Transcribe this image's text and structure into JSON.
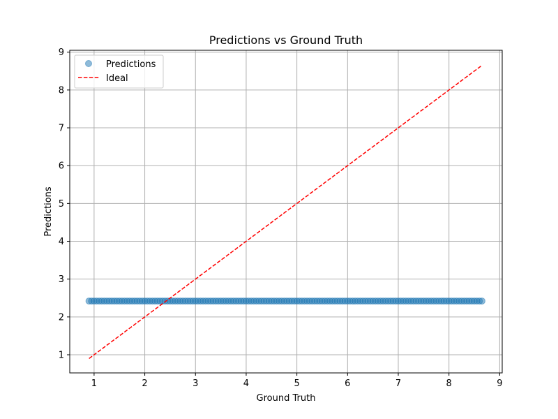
{
  "chart_data": {
    "type": "scatter",
    "title": "Predictions vs Ground Truth",
    "xlabel": "Ground Truth",
    "ylabel": "Predictions",
    "xlim": [
      0.52,
      9.05
    ],
    "ylim": [
      0.52,
      9.05
    ],
    "xticks": [
      1,
      2,
      3,
      4,
      5,
      6,
      7,
      8,
      9
    ],
    "yticks": [
      1,
      2,
      3,
      4,
      5,
      6,
      7,
      8,
      9
    ],
    "grid": true,
    "legend": {
      "position": "top-left"
    },
    "series": [
      {
        "name": "Predictions",
        "kind": "scatter",
        "color": "#1f77b4",
        "alpha": 0.5,
        "constant_y": 2.42,
        "x_range": [
          0.9,
          8.65
        ],
        "x": [
          0.9,
          0.95,
          1.0,
          1.05,
          1.1,
          1.15,
          1.2,
          1.25,
          1.3,
          1.35,
          1.4,
          1.45,
          1.5,
          1.55,
          1.6,
          1.65,
          1.7,
          1.75,
          1.8,
          1.85,
          1.9,
          1.95,
          2.0,
          2.05,
          2.1,
          2.15,
          2.2,
          2.25,
          2.3,
          2.35,
          2.4,
          2.45,
          2.5,
          2.55,
          2.6,
          2.65,
          2.7,
          2.75,
          2.8,
          2.85,
          2.9,
          2.95,
          3.0,
          3.05,
          3.1,
          3.15,
          3.2,
          3.25,
          3.3,
          3.35,
          3.4,
          3.45,
          3.5,
          3.55,
          3.6,
          3.65,
          3.7,
          3.75,
          3.8,
          3.85,
          3.9,
          3.95,
          4.0,
          4.05,
          4.1,
          4.15,
          4.2,
          4.25,
          4.3,
          4.35,
          4.4,
          4.45,
          4.5,
          4.55,
          4.6,
          4.65,
          4.7,
          4.75,
          4.8,
          4.85,
          4.9,
          4.95,
          5.0,
          5.05,
          5.1,
          5.15,
          5.2,
          5.25,
          5.3,
          5.35,
          5.4,
          5.45,
          5.5,
          5.55,
          5.6,
          5.65,
          5.7,
          5.75,
          5.8,
          5.85,
          5.9,
          5.95,
          6.0,
          6.05,
          6.1,
          6.15,
          6.2,
          6.25,
          6.3,
          6.35,
          6.4,
          6.45,
          6.5,
          6.55,
          6.6,
          6.65,
          6.7,
          6.75,
          6.8,
          6.85,
          6.9,
          6.95,
          7.0,
          7.05,
          7.1,
          7.15,
          7.2,
          7.25,
          7.3,
          7.35,
          7.4,
          7.45,
          7.5,
          7.55,
          7.6,
          7.65,
          7.7,
          7.75,
          7.8,
          7.85,
          7.9,
          7.95,
          8.0,
          8.05,
          8.1,
          8.15,
          8.2,
          8.25,
          8.3,
          8.35,
          8.4,
          8.45,
          8.5,
          8.55,
          8.6,
          8.65
        ]
      },
      {
        "name": "Ideal",
        "kind": "line",
        "style": "dashed",
        "color": "#ff0000",
        "x": [
          0.9,
          8.65
        ],
        "y": [
          0.9,
          8.65
        ]
      }
    ]
  }
}
